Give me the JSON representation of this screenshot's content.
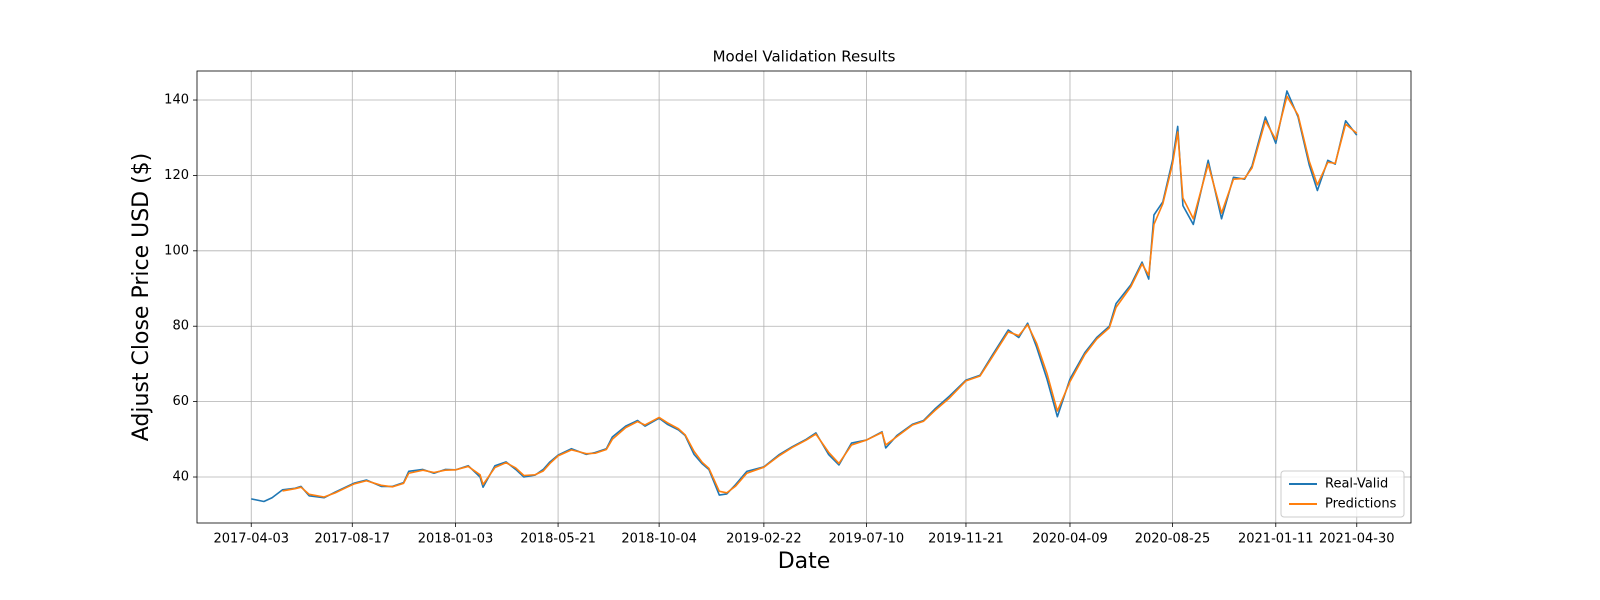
{
  "chart_data": {
    "type": "line",
    "title": "Model Validation Results",
    "x_label": "Date",
    "y_label": "Adjust Close Price USD ($)",
    "x": [
      "2017-04-03",
      "2017-04-20",
      "2017-05-01",
      "2017-05-15",
      "2017-06-01",
      "2017-06-09",
      "2017-06-20",
      "2017-07-10",
      "2017-07-25",
      "2017-08-10",
      "2017-08-20",
      "2017-09-05",
      "2017-09-25",
      "2017-10-10",
      "2017-10-25",
      "2017-11-01",
      "2017-11-20",
      "2017-12-05",
      "2017-12-20",
      "2018-01-03",
      "2018-01-20",
      "2018-02-05",
      "2018-02-09",
      "2018-02-25",
      "2018-03-12",
      "2018-03-25",
      "2018-04-05",
      "2018-04-20",
      "2018-05-01",
      "2018-05-10",
      "2018-05-21",
      "2018-06-08",
      "2018-06-28",
      "2018-07-10",
      "2018-07-25",
      "2018-08-02",
      "2018-08-20",
      "2018-09-05",
      "2018-09-15",
      "2018-10-04",
      "2018-10-15",
      "2018-10-30",
      "2018-11-08",
      "2018-11-20",
      "2018-12-01",
      "2018-12-10",
      "2018-12-24",
      "2019-01-03",
      "2019-01-15",
      "2019-01-30",
      "2019-02-22",
      "2019-03-15",
      "2019-04-01",
      "2019-04-20",
      "2019-05-03",
      "2019-05-20",
      "2019-06-03",
      "2019-06-20",
      "2019-07-10",
      "2019-07-31",
      "2019-08-05",
      "2019-08-20",
      "2019-09-10",
      "2019-09-25",
      "2019-10-10",
      "2019-10-30",
      "2019-11-21",
      "2019-12-10",
      "2019-12-27",
      "2020-01-17",
      "2020-01-31",
      "2020-02-12",
      "2020-02-24",
      "2020-03-09",
      "2020-03-23",
      "2020-04-09",
      "2020-04-29",
      "2020-05-15",
      "2020-06-01",
      "2020-06-10",
      "2020-06-30",
      "2020-07-15",
      "2020-07-24",
      "2020-07-31",
      "2020-08-12",
      "2020-08-25",
      "2020-09-01",
      "2020-09-08",
      "2020-09-22",
      "2020-10-12",
      "2020-10-30",
      "2020-11-15",
      "2020-11-30",
      "2020-12-10",
      "2020-12-28",
      "2021-01-11",
      "2021-01-26",
      "2021-02-10",
      "2021-02-25",
      "2021-03-08",
      "2021-03-22",
      "2021-04-01",
      "2021-04-15",
      "2021-04-30"
    ],
    "series": [
      {
        "name": "Real-Valid",
        "color": "#1f77b4",
        "values": [
          34.2,
          33.5,
          34.5,
          36.6,
          37,
          37.5,
          35,
          34.5,
          36,
          37.5,
          38.4,
          39.2,
          37.5,
          37.5,
          38.5,
          41.5,
          42,
          41,
          42,
          41.9,
          43,
          40,
          37.3,
          43,
          44,
          42,
          40,
          40.5,
          42,
          44,
          45.8,
          47.5,
          46,
          46.5,
          47.5,
          50.6,
          53.5,
          55,
          53.5,
          55.6,
          54,
          52.5,
          51,
          46,
          43.5,
          42,
          35.2,
          35.5,
          38,
          41.5,
          42.7,
          46,
          48,
          50,
          51.7,
          46,
          43.2,
          49,
          49.8,
          52,
          47.7,
          51,
          54,
          55,
          58,
          61.5,
          65.7,
          67,
          72.5,
          79,
          77,
          80.8,
          74.5,
          66,
          56,
          66,
          73,
          77,
          80,
          86,
          91,
          97,
          92.5,
          109.5,
          113,
          124,
          133,
          112,
          107,
          124,
          108.5,
          119.5,
          119,
          122.5,
          135.5,
          128.5,
          142.4,
          135.5,
          122.8,
          116,
          124,
          123,
          134.5,
          130.7
        ]
      },
      {
        "name": "Predictions",
        "color": "#ff7f0e",
        "values": [
          null,
          null,
          null,
          36.3,
          36.9,
          37.3,
          35.4,
          34.7,
          35.8,
          37.3,
          38.2,
          39,
          37.8,
          37.4,
          38.3,
          41,
          41.8,
          41.2,
          41.8,
          41.9,
          42.8,
          40.6,
          38,
          42.5,
          43.8,
          42.4,
          40.4,
          40.6,
          41.6,
          43.6,
          45.6,
          47.2,
          46.2,
          46.3,
          47.3,
          50,
          53.1,
          54.7,
          53.8,
          55.8,
          54.4,
          52.8,
          51.2,
          46.8,
          43.9,
          42.3,
          36.2,
          35.8,
          37.6,
          41,
          42.6,
          45.7,
          47.8,
          49.8,
          51.4,
          46.6,
          43.6,
          48.5,
          49.8,
          51.8,
          48.5,
          50.7,
          53.8,
          54.8,
          57.6,
          61,
          65.5,
          66.8,
          72,
          78.5,
          77.5,
          80.4,
          75.5,
          67.5,
          57.5,
          65.3,
          72.5,
          76.6,
          79.6,
          85,
          90.5,
          96.5,
          93.5,
          107,
          112.5,
          123,
          131.5,
          114,
          108.5,
          123,
          110,
          119,
          119.2,
          122,
          134.5,
          129.5,
          141,
          136,
          123.8,
          117.5,
          123.5,
          123.2,
          133.6,
          131.2
        ]
      }
    ],
    "xlim": [
      "2017-01-20",
      "2021-07-12"
    ],
    "xticks": [
      "2017-04-03",
      "2017-08-17",
      "2018-01-03",
      "2018-05-21",
      "2018-10-04",
      "2019-02-22",
      "2019-07-10",
      "2019-11-21",
      "2020-04-09",
      "2020-08-25",
      "2021-01-11",
      "2021-04-30"
    ],
    "ylim": [
      27.8,
      147.7
    ],
    "yticks": [
      40,
      60,
      80,
      100,
      120,
      140
    ],
    "grid": true,
    "legend": "lower right"
  }
}
